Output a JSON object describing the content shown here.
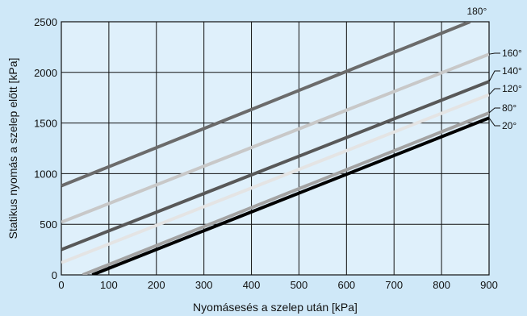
{
  "chart_data": {
    "type": "line",
    "title": "",
    "xlabel": "Nyomásesés a szelep után [kPa]",
    "ylabel": "Statikus nyomás a szelep előtt [kPa]",
    "xlim": [
      0,
      900
    ],
    "ylim": [
      0,
      2500
    ],
    "xticks": [
      0,
      100,
      200,
      300,
      400,
      500,
      600,
      700,
      800,
      900
    ],
    "yticks": [
      0,
      500,
      1000,
      1500,
      2000,
      2500
    ],
    "grid": true,
    "colors": {
      "background": "#cfe8f8",
      "plot_background": "#dff0fb",
      "grid": "#111111"
    },
    "series": [
      {
        "name": "180°",
        "color": "#6b6b6b",
        "points": [
          [
            0,
            880
          ],
          [
            860,
            2500
          ]
        ]
      },
      {
        "name": "160°",
        "color": "#c8c8c8",
        "points": [
          [
            0,
            520
          ],
          [
            900,
            2180
          ]
        ]
      },
      {
        "name": "140°",
        "color": "#585858",
        "points": [
          [
            0,
            250
          ],
          [
            900,
            1910
          ]
        ]
      },
      {
        "name": "120°",
        "color": "#e4e4e4",
        "points": [
          [
            0,
            120
          ],
          [
            900,
            1780
          ]
        ]
      },
      {
        "name": "80°",
        "color": "#a3a3a3",
        "points": [
          [
            45,
            0
          ],
          [
            900,
            1600
          ]
        ]
      },
      {
        "name": "20°",
        "color": "#000000",
        "points": [
          [
            65,
            0
          ],
          [
            900,
            1550
          ]
        ]
      }
    ]
  }
}
